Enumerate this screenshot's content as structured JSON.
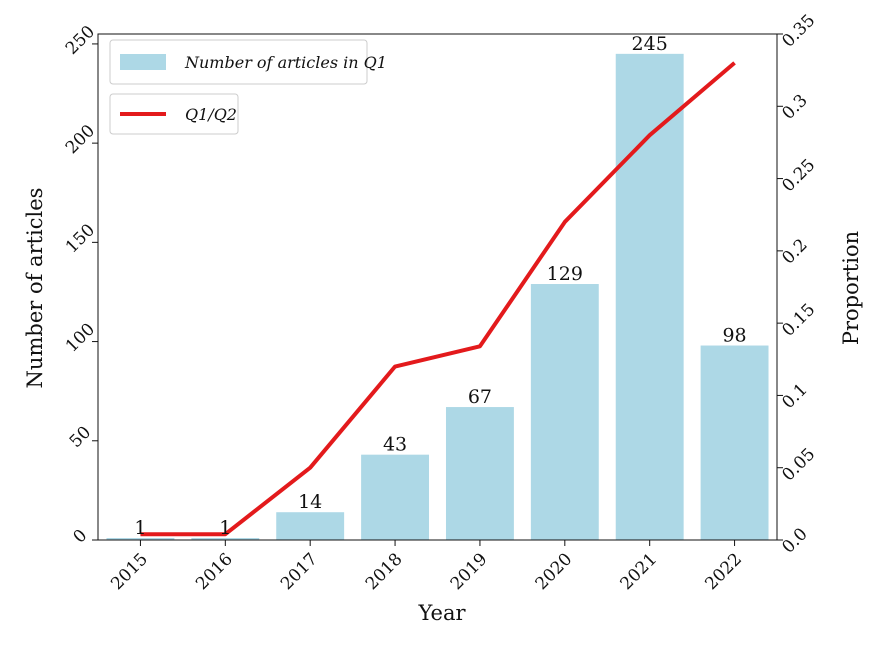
{
  "chart_data": {
    "type": "bar",
    "categories": [
      "2015",
      "2016",
      "2017",
      "2018",
      "2019",
      "2020",
      "2021",
      "2022"
    ],
    "series": [
      {
        "name": "Number of articles in Q1",
        "type": "bar",
        "axis": "left",
        "color": "#add8e6",
        "values": [
          1,
          1,
          14,
          43,
          67,
          129,
          245,
          98
        ]
      },
      {
        "name": "Q1/Q2",
        "type": "line",
        "axis": "right",
        "color": "#e31a1c",
        "values": [
          0.004,
          0.004,
          0.05,
          0.12,
          0.134,
          0.22,
          0.28,
          0.33
        ]
      }
    ],
    "data_labels": [
      "1",
      "1",
      "14",
      "43",
      "67",
      "129",
      "245",
      "98"
    ],
    "xlabel": "Year",
    "ylabel": "Number of articles",
    "y2label": "Proportion",
    "ylim": [
      0,
      255
    ],
    "y2lim": [
      0,
      0.35
    ],
    "yticks": [
      "0",
      "50",
      "100",
      "150",
      "200",
      "250"
    ],
    "y2ticks": [
      "0.0",
      "0.05",
      "0.1",
      "0.15",
      "0.2",
      "0.25",
      "0.3",
      "0.35"
    ],
    "legend": [
      {
        "label": "Number of articles in Q1",
        "kind": "bar",
        "color": "#add8e6"
      },
      {
        "label": "Q1/Q2",
        "kind": "line",
        "color": "#e31a1c"
      }
    ],
    "legend_position": "top-left",
    "grid": false
  }
}
